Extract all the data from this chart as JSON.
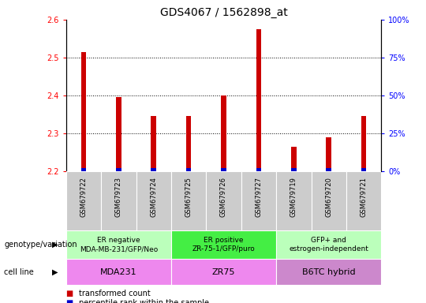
{
  "title": "GDS4067 / 1562898_at",
  "samples": [
    "GSM679722",
    "GSM679723",
    "GSM679724",
    "GSM679725",
    "GSM679726",
    "GSM679727",
    "GSM679719",
    "GSM679720",
    "GSM679721"
  ],
  "transformed_count": [
    2.515,
    2.395,
    2.345,
    2.345,
    2.4,
    2.575,
    2.265,
    2.29,
    2.345
  ],
  "bar_bottom": 2.2,
  "ylim": [
    2.2,
    2.6
  ],
  "yticks": [
    2.2,
    2.3,
    2.4,
    2.5,
    2.6
  ],
  "y2ticks": [
    0,
    25,
    50,
    75,
    100
  ],
  "y2lim": [
    0,
    100
  ],
  "red_color": "#cc0000",
  "blue_color": "#0000cc",
  "blue_bar_height": 0.008,
  "bar_width": 0.15,
  "genotype_groups": [
    {
      "label": "ER negative\nMDA-MB-231/GFP/Neo",
      "start": 0,
      "end": 3,
      "color": "#bbffbb"
    },
    {
      "label": "ER positive\nZR-75-1/GFP/puro",
      "start": 3,
      "end": 6,
      "color": "#44ee44"
    },
    {
      "label": "GFP+ and\nestrogen-independent",
      "start": 6,
      "end": 9,
      "color": "#bbffbb"
    }
  ],
  "cell_line_groups": [
    {
      "label": "MDA231",
      "start": 0,
      "end": 3,
      "color": "#ee88ee"
    },
    {
      "label": "ZR75",
      "start": 3,
      "end": 6,
      "color": "#ee88ee"
    },
    {
      "label": "B6TC hybrid",
      "start": 6,
      "end": 9,
      "color": "#cc88cc"
    }
  ],
  "legend_items": [
    {
      "label": "transformed count",
      "color": "#cc0000"
    },
    {
      "label": "percentile rank within the sample",
      "color": "#0000cc"
    }
  ],
  "genotype_label": "genotype/variation",
  "cell_line_label": "cell line",
  "sample_box_color": "#cccccc",
  "title_fontsize": 10,
  "tick_fontsize": 7,
  "sample_fontsize": 6,
  "annot_fontsize": 6.5,
  "cell_fontsize": 8
}
